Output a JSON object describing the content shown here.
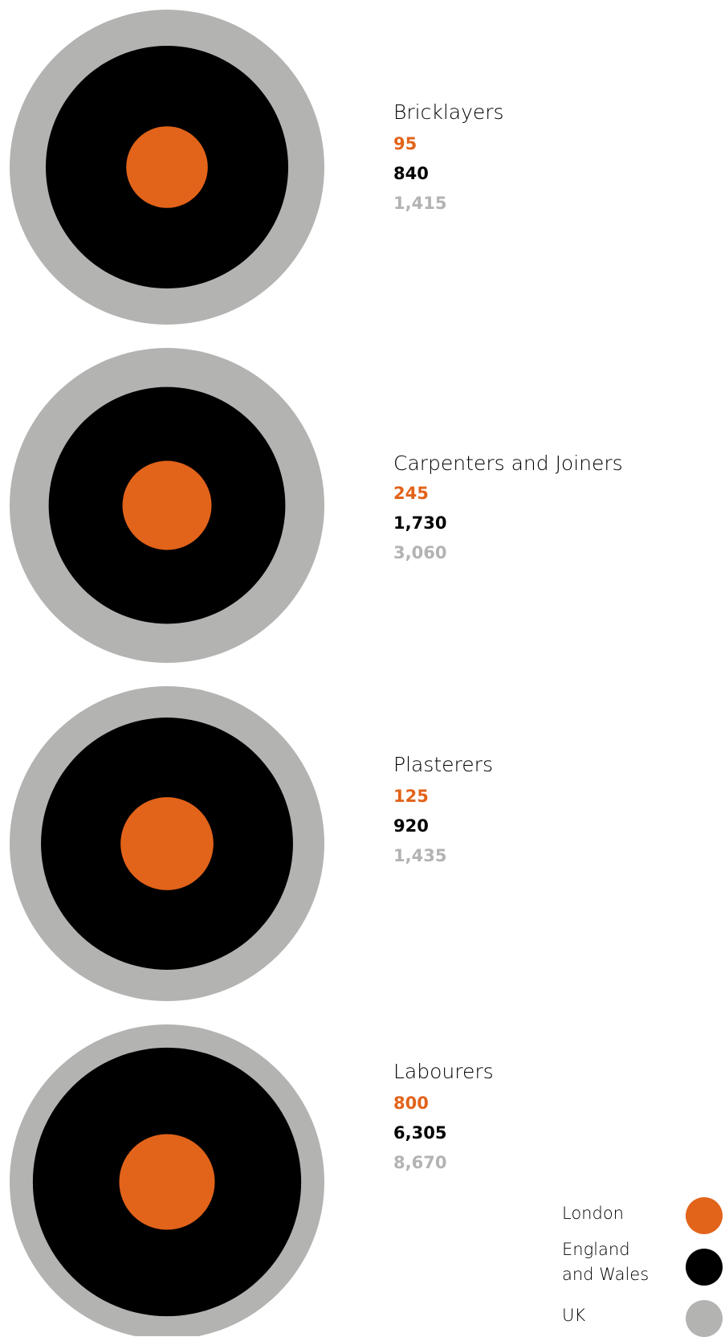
{
  "chart_data": {
    "type": "nested-circles",
    "series": [
      {
        "name": "London",
        "color": "#E2631A"
      },
      {
        "name": "England and Wales",
        "color": "#000000"
      },
      {
        "name": "UK",
        "color": "#B3B3B2"
      }
    ],
    "categories": [
      "Bricklayers",
      "Carpenters and Joiners",
      "Plasterers",
      "Labourers"
    ],
    "rows": [
      {
        "category": "Bricklayers",
        "london": 95,
        "england_wales": 840,
        "uk": 1415,
        "london_label": "95",
        "england_wales_label": "840",
        "uk_label": "1,415"
      },
      {
        "category": "Carpenters and Joiners",
        "london": 245,
        "england_wales": 1730,
        "uk": 3060,
        "london_label": "245",
        "england_wales_label": "1,730",
        "uk_label": "3,060"
      },
      {
        "category": "Plasterers",
        "london": 125,
        "england_wales": 920,
        "uk": 1435,
        "london_label": "125",
        "england_wales_label": "920",
        "uk_label": "1,435"
      },
      {
        "category": "Labourers",
        "london": 800,
        "england_wales": 6305,
        "uk": 8670,
        "london_label": "800",
        "england_wales_label": "6,305",
        "uk_label": "8,670"
      }
    ]
  },
  "legend": {
    "london": "London",
    "england_wales_line1": "England",
    "england_wales_line2": "and Wales",
    "uk": "UK"
  },
  "colors": {
    "london": "#E2631A",
    "england_wales": "#000000",
    "uk": "#B3B3B2"
  }
}
